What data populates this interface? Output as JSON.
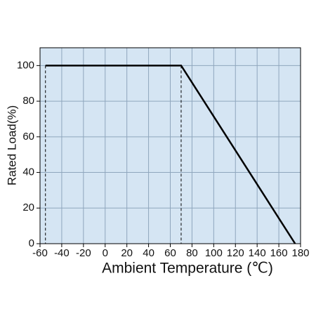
{
  "chart_data": {
    "type": "line",
    "xlabel": "Ambient Temperature (℃)",
    "ylabel": "Rated Load(%)",
    "x": [
      -55,
      70,
      175
    ],
    "series": [
      {
        "color": "#000000",
        "values": [
          100,
          100,
          0
        ]
      }
    ],
    "vlines": [
      -55,
      70
    ],
    "xlim": [
      -60,
      180
    ],
    "xticks": [
      -60,
      -40,
      -20,
      0,
      20,
      40,
      60,
      80,
      100,
      120,
      140,
      160,
      180
    ],
    "ylim": [
      0,
      110
    ],
    "yticks": [
      0,
      20,
      40,
      60,
      80,
      100
    ],
    "grid": true,
    "background": "#d5e5f3"
  }
}
